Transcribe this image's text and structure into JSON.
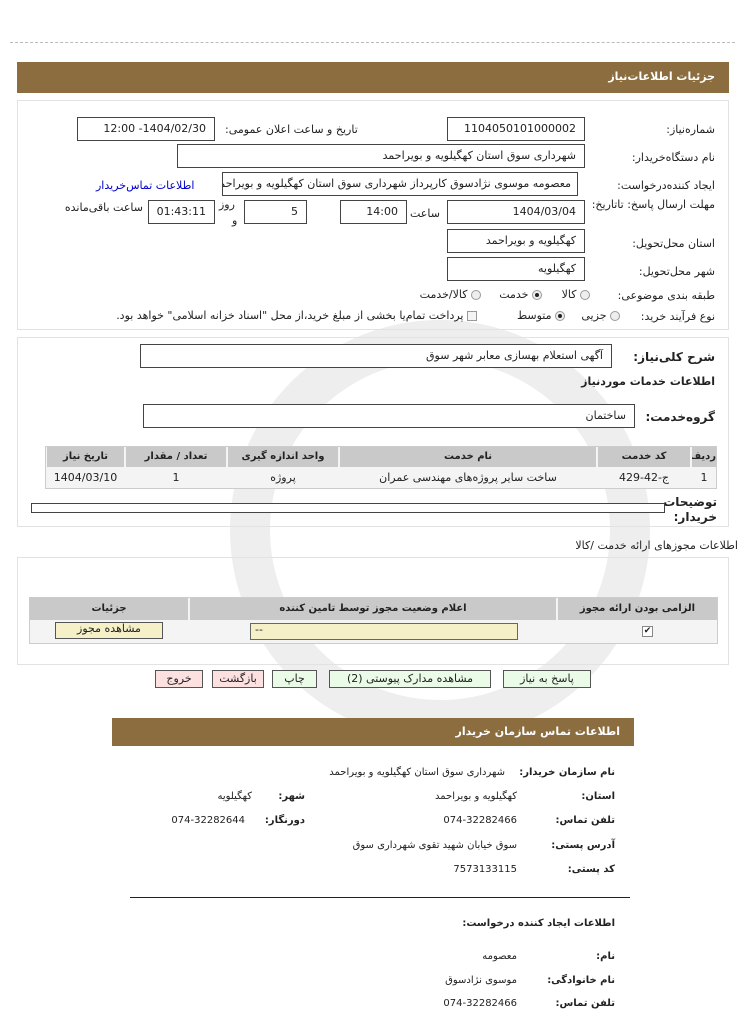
{
  "page_title": "جزئیات اطلاعات‌نیاز",
  "details": {
    "need_number_label": "شماره‌نیاز:",
    "need_number": "1104050101000002",
    "announce_label": "تاریخ و ساعت اعلان عمومی:",
    "announce_value": "1404/02/30- 12:00",
    "buyer_org_label": "نام دستگاه‌خریدار:",
    "buyer_org": "شهرداری سوق استان کهگیلویه و بویراحمد",
    "creator_label": "ایجاد کننده‌درخواست:",
    "creator": "معصومه موسوی نژادسوق کارپرداز شهرداری سوق استان کهگیلویه و بویراحمد",
    "contact_link": "اطلاعات تماس‌خریدار",
    "deadline_label": "مهلت ارسال پاسخ: تاتاریخ:",
    "deadline_date": "1404/03/04",
    "time_label": "ساعت",
    "deadline_time": "14:00",
    "days_value": "5",
    "days_label": "روز",
    "and_label": "و",
    "remaining_time": "01:43:11",
    "remaining_label": "ساعت باقی‌مانده",
    "province_label": "استان محل‌تحویل:",
    "province": "کهگیلویه و بویراحمد",
    "city_label": "شهر محل‌تحویل:",
    "city": "کهگیلویه",
    "category_label": "طبقه بندی موضوعی:",
    "category_options": [
      "کالا",
      "خدمت",
      "کالا/خدمت"
    ],
    "category_selected": "خدمت",
    "process_label": "نوع فرآیند خرید:",
    "process_options": [
      "جزیی",
      "متوسط"
    ],
    "process_selected": "متوسط",
    "payment_note": "پرداخت تمام‌یا بخشی از مبلغ خرید،از محل \"اسناد خزانه اسلامی\" خواهد بود."
  },
  "services": {
    "summary_label": "شرح کلی‌نیاز:",
    "summary": "آگهی استعلام بهسازی معابر شهر سوق",
    "section_title": "اطلاعات خدمات موردنیاز",
    "group_label": "گروه‌خدمت:",
    "group": "ساختمان",
    "table": {
      "headers": [
        "ردیف",
        "کد خدمت",
        "نام خدمت",
        "واحد اندازه گیری",
        "تعداد / مقدار",
        "تاریخ نیاز"
      ],
      "rows": [
        [
          "1",
          "ج-42-429",
          "ساخت سایر پروژه‌های مهندسی عمران",
          "پروژه",
          "1",
          "1404/03/10"
        ]
      ]
    },
    "buyer_notes_label": "توضیحات خریدار:",
    "buyer_notes": ""
  },
  "licenses": {
    "title": "اطلاعات مجوزهای ارائه خدمت /کالا",
    "headers": [
      "الزامی بودن ارائه مجوز",
      "اعلام وضعیت مجوز توسط تامین کننده",
      "جزئیات"
    ],
    "row": {
      "required": true,
      "status": "--",
      "details_button": "مشاهده مجوز"
    }
  },
  "actions": {
    "reply": "پاسخ به نیاز",
    "attachments": "مشاهده مدارک پیوستی (2)",
    "print": "چاپ",
    "back": "بازگشت",
    "exit": "خروج"
  },
  "contact": {
    "title": "اطلاعات تماس سازمان خریدار",
    "org_label": "نام سازمان خریدار:",
    "org": "شهرداری سوق استان کهگیلویه و بویراحمد",
    "province_label": "استان:",
    "province": "کهگیلویه و بویراحمد",
    "city_label": "شهر:",
    "city": "کهگیلویه",
    "phone_label": "تلفن تماس:",
    "phone": "074-32282466",
    "fax_label": "دورنگار:",
    "fax": "074-32282644",
    "address_label": "آدرس پستی:",
    "address": "سوق خیابان شهید تقوی شهرداری سوق",
    "postal_label": "کد پستی:",
    "postal": "7573133115",
    "creator_title": "اطلاعات ایجاد کننده درخواست:",
    "name_label": "نام:",
    "name": "معصومه",
    "family_label": "نام خانوادگی:",
    "family": "موسوی نژادسوق",
    "creator_phone_label": "تلفن تماس:",
    "creator_phone": "074-32282466"
  },
  "colors": {
    "header_bar": "#8c6d3f",
    "link": "#0000cc",
    "reply_button": "#eafbe8",
    "exit_button": "#fde0e0",
    "license_status": "#f5f0c8"
  }
}
